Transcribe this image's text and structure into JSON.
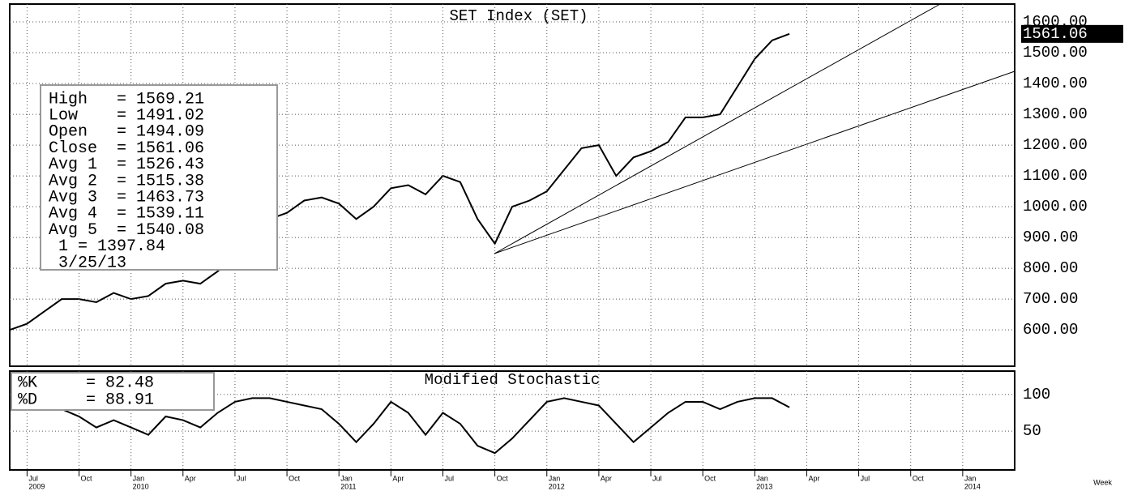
{
  "chart_data": [
    {
      "type": "line",
      "title": "SET Index (SET)",
      "color": "#000000",
      "x": [
        "2009-06",
        "2009-07",
        "2009-08",
        "2009-09",
        "2009-10",
        "2009-11",
        "2009-12",
        "2010-01",
        "2010-02",
        "2010-03",
        "2010-04",
        "2010-05",
        "2010-06",
        "2010-07",
        "2010-08",
        "2010-09",
        "2010-10",
        "2010-11",
        "2010-12",
        "2011-01",
        "2011-02",
        "2011-03",
        "2011-04",
        "2011-05",
        "2011-06",
        "2011-07",
        "2011-08",
        "2011-09",
        "2011-10",
        "2011-11",
        "2011-12",
        "2012-01",
        "2012-02",
        "2012-03",
        "2012-04",
        "2012-05",
        "2012-06",
        "2012-07",
        "2012-08",
        "2012-09",
        "2012-10",
        "2012-11",
        "2012-12",
        "2013-01",
        "2013-02",
        "2013-03"
      ],
      "values": [
        600,
        620,
        660,
        700,
        700,
        690,
        720,
        700,
        710,
        750,
        760,
        750,
        790,
        840,
        900,
        960,
        980,
        1020,
        1030,
        1010,
        960,
        1000,
        1060,
        1070,
        1040,
        1100,
        1080,
        960,
        880,
        1000,
        1020,
        1050,
        1120,
        1190,
        1200,
        1100,
        1160,
        1180,
        1210,
        1290,
        1290,
        1300,
        1390,
        1480,
        1540,
        1561.06
      ],
      "last_label": "1561.06",
      "xlim": [
        "2009-06",
        "2014-04"
      ],
      "ylim": [
        482,
        1658
      ],
      "yticks": [
        {
          "value": 600,
          "label": "600.00"
        },
        {
          "value": 700,
          "label": "700.00"
        },
        {
          "value": 800,
          "label": "800.00"
        },
        {
          "value": 900,
          "label": "900.00"
        },
        {
          "value": 1000,
          "label": "1000.00"
        },
        {
          "value": 1100,
          "label": "1100.00"
        },
        {
          "value": 1200,
          "label": "1200.00"
        },
        {
          "value": 1300,
          "label": "1300.00"
        },
        {
          "value": 1400,
          "label": "1400.00"
        },
        {
          "value": 1500,
          "label": "1500.00"
        },
        {
          "value": 1600,
          "label": "1600.00"
        }
      ],
      "grid": true,
      "info": [
        "High   = 1569.21",
        "Low    = 1491.02",
        "Open   = 1494.09",
        "Close  = 1561.06",
        "Avg 1  = 1526.43",
        "Avg 2  = 1515.38",
        "Avg 3  = 1463.73",
        "Avg 4  = 1539.11",
        "Avg 5  = 1540.08",
        " 1 = 1397.84",
        " 3/25/13"
      ]
    },
    {
      "type": "line",
      "title": "Modified Stochastic",
      "color": "#000000",
      "x": [
        "2009-09",
        "2009-10",
        "2009-11",
        "2009-12",
        "2010-01",
        "2010-02",
        "2010-03",
        "2010-04",
        "2010-05",
        "2010-06",
        "2010-07",
        "2010-08",
        "2010-09",
        "2010-10",
        "2010-11",
        "2010-12",
        "2011-01",
        "2011-02",
        "2011-03",
        "2011-04",
        "2011-05",
        "2011-06",
        "2011-07",
        "2011-08",
        "2011-09",
        "2011-10",
        "2011-11",
        "2011-12",
        "2012-01",
        "2012-02",
        "2012-03",
        "2012-04",
        "2012-05",
        "2012-06",
        "2012-07",
        "2012-08",
        "2012-09",
        "2012-10",
        "2012-11",
        "2012-12",
        "2013-01",
        "2013-02",
        "2013-03"
      ],
      "values": [
        80,
        70,
        55,
        65,
        55,
        45,
        70,
        65,
        55,
        75,
        90,
        95,
        95,
        90,
        85,
        80,
        60,
        35,
        60,
        90,
        75,
        45,
        75,
        60,
        30,
        20,
        40,
        65,
        90,
        95,
        90,
        85,
        60,
        35,
        55,
        75,
        90,
        90,
        80,
        90,
        95,
        95,
        82.48
      ],
      "xlim": [
        "2009-06",
        "2014-04"
      ],
      "ylim": [
        -3,
        132
      ],
      "yticks": [
        50,
        100
      ],
      "grid": true,
      "info": [
        "%K     = 82.48",
        "%D     = 88.91"
      ],
      "xticks": [
        {
          "value": "2009-07",
          "label": "Jul"
        },
        {
          "value": "2009-10",
          "label": "Oct"
        },
        {
          "value": "2010-01",
          "label": "Jan"
        },
        {
          "value": "2010-04",
          "label": "Apr"
        },
        {
          "value": "2010-07",
          "label": "Jul"
        },
        {
          "value": "2010-10",
          "label": "Oct"
        },
        {
          "value": "2011-01",
          "label": "Jan"
        },
        {
          "value": "2011-04",
          "label": "Apr"
        },
        {
          "value": "2011-07",
          "label": "Jul"
        },
        {
          "value": "2011-10",
          "label": "Oct"
        },
        {
          "value": "2012-01",
          "label": "Jan"
        },
        {
          "value": "2012-04",
          "label": "Apr"
        },
        {
          "value": "2012-07",
          "label": "Jul"
        },
        {
          "value": "2012-10",
          "label": "Oct"
        },
        {
          "value": "2013-01",
          "label": "Jan"
        },
        {
          "value": "2013-04",
          "label": "Apr"
        },
        {
          "value": "2013-07",
          "label": "Jul"
        },
        {
          "value": "2013-10",
          "label": "Oct"
        },
        {
          "value": "2014-01",
          "label": "Jan"
        }
      ],
      "year_labels": [
        {
          "value": "2009-07",
          "label": "2009"
        },
        {
          "value": "2010-01",
          "label": "2010"
        },
        {
          "value": "2011-01",
          "label": "2011"
        },
        {
          "value": "2012-01",
          "label": "2012"
        },
        {
          "value": "2013-01",
          "label": "2013"
        },
        {
          "value": "2014-01",
          "label": "2014"
        }
      ],
      "x_unit": "Week"
    }
  ]
}
